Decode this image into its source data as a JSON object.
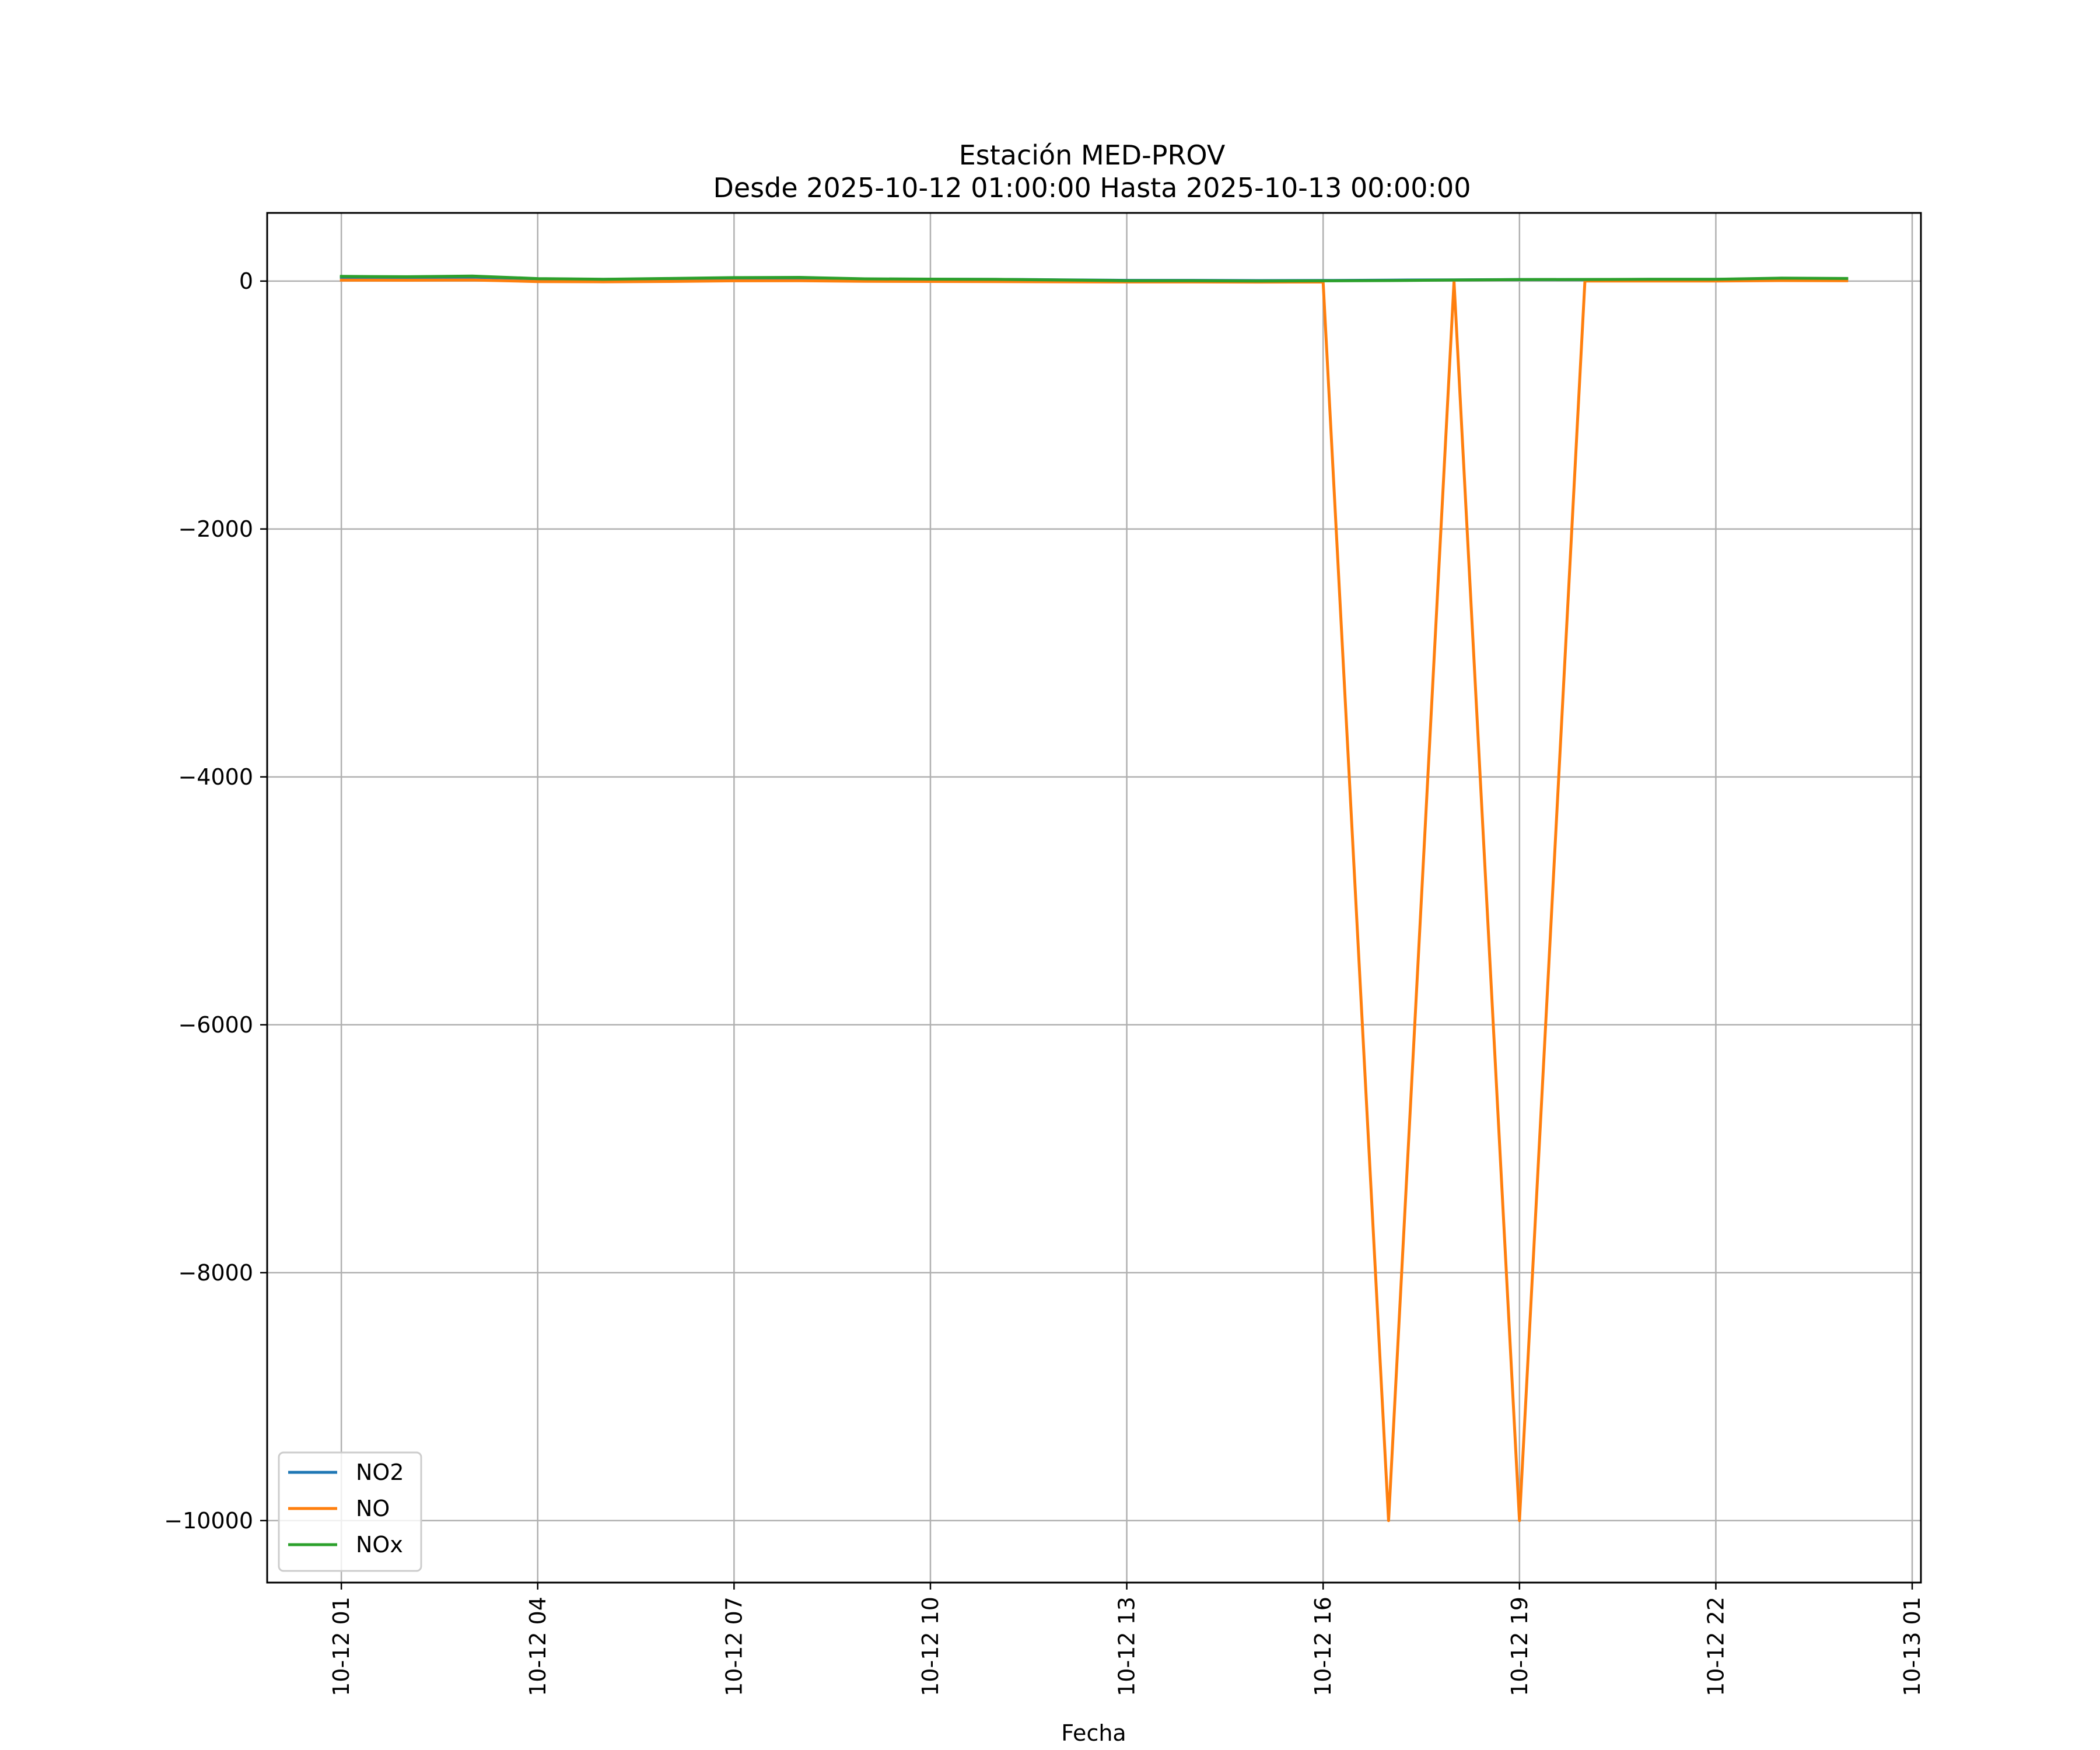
{
  "chart_data": {
    "type": "line",
    "title": "Estación MED-PROV",
    "subtitle": "Desde 2025-10-12 01:00:00 Hasta 2025-10-13 00:00:00",
    "xlabel": "Fecha",
    "ylabel": "",
    "grid": true,
    "legend_position": "lower-left",
    "xlim": [
      "2025-10-11 23:52",
      "2025-10-13 01:08"
    ],
    "ylim": [
      -10500,
      550
    ],
    "x_ticks": [
      {
        "value": "2025-10-12 01:00",
        "label": "10-12 01"
      },
      {
        "value": "2025-10-12 04:00",
        "label": "10-12 04"
      },
      {
        "value": "2025-10-12 07:00",
        "label": "10-12 07"
      },
      {
        "value": "2025-10-12 10:00",
        "label": "10-12 10"
      },
      {
        "value": "2025-10-12 13:00",
        "label": "10-12 13"
      },
      {
        "value": "2025-10-12 16:00",
        "label": "10-12 16"
      },
      {
        "value": "2025-10-12 19:00",
        "label": "10-12 19"
      },
      {
        "value": "2025-10-12 22:00",
        "label": "10-12 22"
      },
      {
        "value": "2025-10-13 01:00",
        "label": "10-13 01"
      }
    ],
    "y_ticks": [
      {
        "value": 0,
        "label": "0"
      },
      {
        "value": -2000,
        "label": "−2000"
      },
      {
        "value": -4000,
        "label": "−4000"
      },
      {
        "value": -6000,
        "label": "−6000"
      },
      {
        "value": -8000,
        "label": "−8000"
      },
      {
        "value": -10000,
        "label": "−10000"
      }
    ],
    "x": [
      "2025-10-12 01:00",
      "2025-10-12 02:00",
      "2025-10-12 03:00",
      "2025-10-12 04:00",
      "2025-10-12 05:00",
      "2025-10-12 06:00",
      "2025-10-12 07:00",
      "2025-10-12 08:00",
      "2025-10-12 09:00",
      "2025-10-12 10:00",
      "2025-10-12 11:00",
      "2025-10-12 12:00",
      "2025-10-12 13:00",
      "2025-10-12 14:00",
      "2025-10-12 15:00",
      "2025-10-12 16:00",
      "2025-10-12 17:00",
      "2025-10-12 18:00",
      "2025-10-12 19:00",
      "2025-10-12 20:00",
      "2025-10-12 21:00",
      "2025-10-12 22:00",
      "2025-10-12 23:00",
      "2025-10-13 00:00"
    ],
    "series": [
      {
        "name": "NO2",
        "color": "#1f77b4",
        "values": [
          30,
          28,
          32,
          18,
          14,
          18,
          22,
          25,
          16,
          15,
          14,
          10,
          6,
          6,
          4,
          5,
          8,
          10,
          12,
          12,
          14,
          14,
          20,
          18
        ]
      },
      {
        "name": "NO",
        "color": "#ff7f0e",
        "values": [
          8,
          7,
          9,
          -4,
          -6,
          -3,
          2,
          3,
          -2,
          -3,
          -4,
          -6,
          -7,
          -7,
          -8,
          -7,
          -10000,
          -3,
          -10000,
          1,
          1,
          1,
          4,
          3
        ]
      },
      {
        "name": "NOx",
        "color": "#2ca02c",
        "values": [
          38,
          35,
          41,
          20,
          15,
          21,
          28,
          30,
          18,
          16,
          14,
          9,
          3,
          3,
          1,
          2,
          4,
          9,
          12,
          13,
          15,
          15,
          24,
          21
        ]
      }
    ]
  }
}
